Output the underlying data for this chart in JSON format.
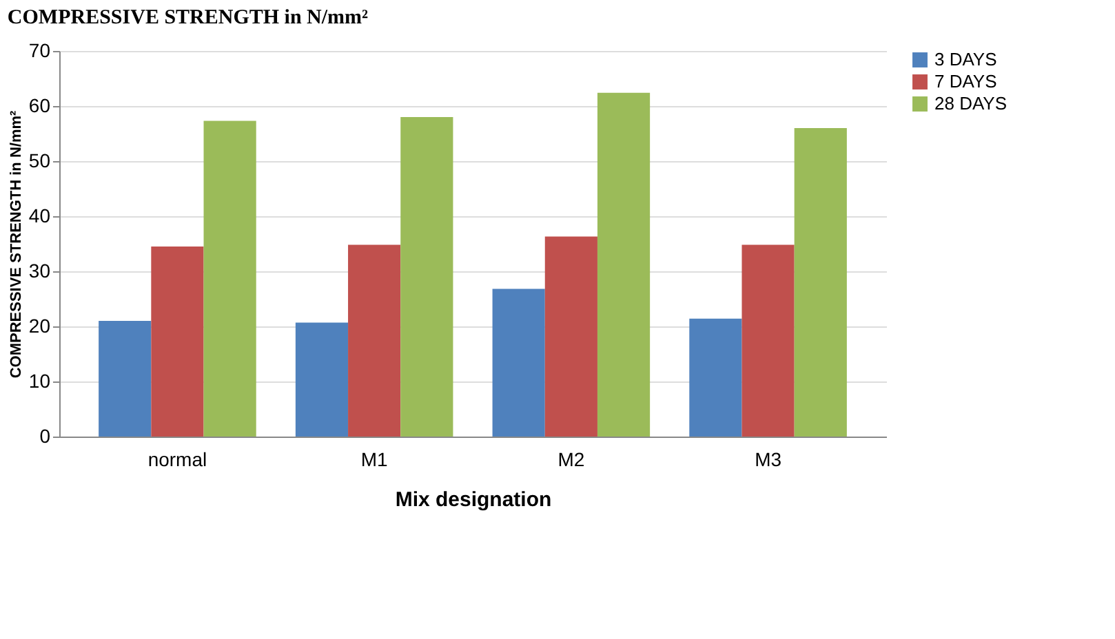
{
  "chart_data": {
    "type": "bar",
    "title": "COMPRESSIVE STRENGTH in N/mm²",
    "xlabel": "Mix designation",
    "ylabel": "COMPRESSIVE STRENGTH in N/mm²",
    "categories": [
      "normal",
      "M1",
      "M2",
      "M3"
    ],
    "series": [
      {
        "name": "3 DAYS",
        "color": "#4f81bd",
        "values": [
          21.0,
          20.7,
          26.8,
          21.4
        ]
      },
      {
        "name": "7 DAYS",
        "color": "#c0504d",
        "values": [
          34.5,
          34.8,
          36.3,
          34.8
        ]
      },
      {
        "name": "28 DAYS",
        "color": "#9bbb59",
        "values": [
          57.3,
          58.0,
          62.4,
          56.0
        ]
      }
    ],
    "ylim": [
      0,
      70
    ],
    "yticks": [
      0,
      10,
      20,
      30,
      40,
      50,
      60,
      70
    ],
    "grid": "y",
    "legend": "right"
  }
}
